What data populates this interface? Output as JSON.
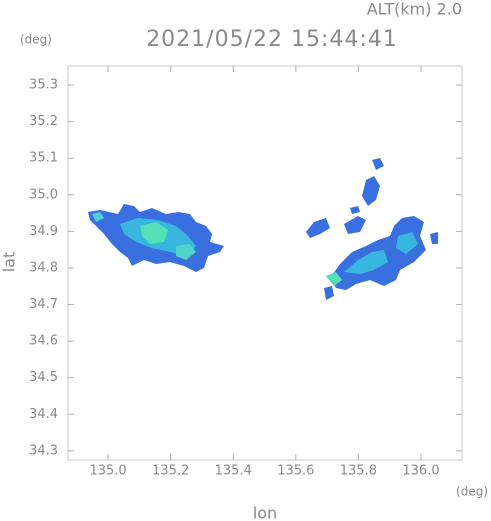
{
  "chart_data": {
    "type": "map",
    "altitude_label": "ALT(km) 2.0",
    "title": "2021/05/22 15:44:41",
    "y_unit": "(deg)",
    "x_unit": "(deg)",
    "ylabel": "lat",
    "xlabel": "lon",
    "xlim": [
      134.872,
      136.131
    ],
    "ylim": [
      34.275,
      35.352
    ],
    "xticks": [
      {
        "value": 135,
        "label": "135.0"
      },
      135.2,
      135.4,
      135.6,
      135.8,
      {
        "value": 136,
        "label": "136.0"
      }
    ],
    "yticks": [
      34.3,
      34.4,
      34.5,
      34.6,
      34.7,
      34.8,
      34.9,
      {
        "value": 35,
        "label": "35.0"
      },
      35.1,
      35.2,
      35.3
    ]
  }
}
